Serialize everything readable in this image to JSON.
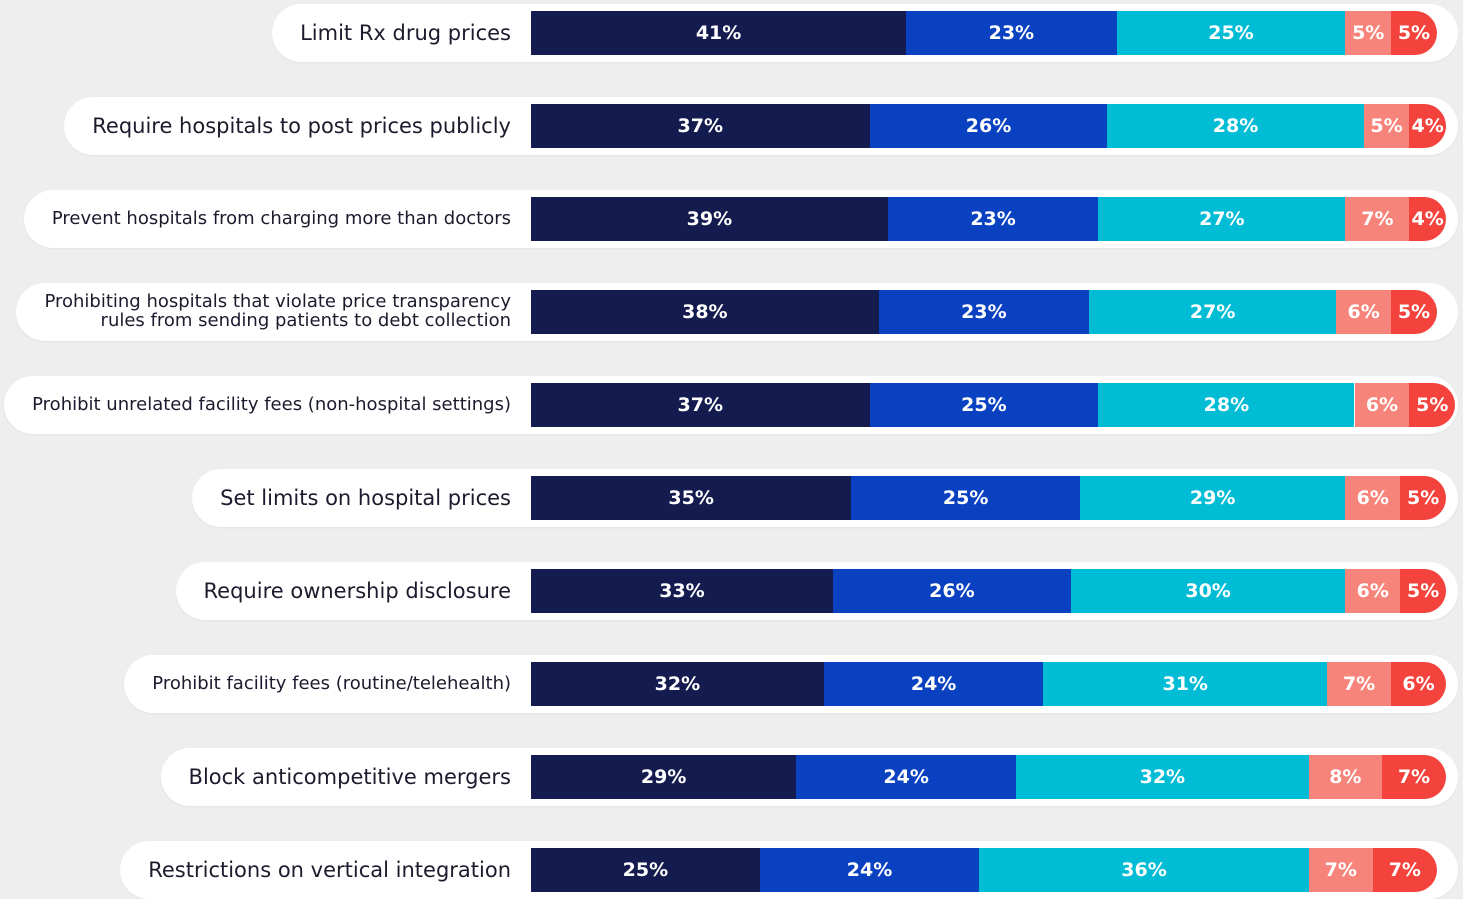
{
  "chart_data": {
    "type": "stacked-bar-horizontal",
    "categories": [
      "Limit Rx drug prices",
      "Require hospitals to post prices publicly",
      "Prevent hospitals from charging more than doctors",
      "Prohibiting hospitals that violate price transparency\nrules from sending patients to debt collection",
      "Prohibit unrelated facility fees (non-hospital settings)",
      "Set limits on hospital prices",
      "Require ownership disclosure",
      "Prohibit facility fees (routine/telehealth)",
      "Block anticompetitive mergers",
      "Restrictions on vertical integration"
    ],
    "series": [
      {
        "color": "#141c4f",
        "values": [
          41,
          37,
          39,
          38,
          37,
          35,
          33,
          32,
          29,
          25
        ],
        "value_labels": [
          "41%",
          "37%",
          "39%",
          "38%",
          "37%",
          "35%",
          "33%",
          "32%",
          "29%",
          "25%"
        ]
      },
      {
        "color": "#0a41c0",
        "values": [
          23,
          26,
          23,
          23,
          25,
          25,
          26,
          24,
          24,
          24
        ],
        "value_labels": [
          "23%",
          "26%",
          "23%",
          "23%",
          "25%",
          "25%",
          "26%",
          "24%",
          "24%",
          "24%"
        ]
      },
      {
        "color": "#00bcd4",
        "values": [
          25,
          28,
          27,
          27,
          28,
          29,
          30,
          31,
          32,
          36
        ],
        "value_labels": [
          "25%",
          "28%",
          "27%",
          "27%",
          "28%",
          "29%",
          "30%",
          "31%",
          "32%",
          "36%"
        ]
      },
      {
        "color": "#f7847a",
        "values": [
          5,
          5,
          7,
          6,
          6,
          6,
          6,
          7,
          8,
          7
        ],
        "value_labels": [
          "5%",
          "5%",
          "7%",
          "6%",
          "6%",
          "6%",
          "6%",
          "7%",
          "8%",
          "7%"
        ]
      },
      {
        "color": "#f4433c",
        "values": [
          5,
          4,
          4,
          5,
          5,
          5,
          5,
          6,
          7,
          7
        ],
        "value_labels": [
          "5%",
          "4%",
          "4%",
          "5%",
          "5%",
          "5%",
          "5%",
          "6%",
          "7%",
          "7%"
        ]
      }
    ]
  }
}
